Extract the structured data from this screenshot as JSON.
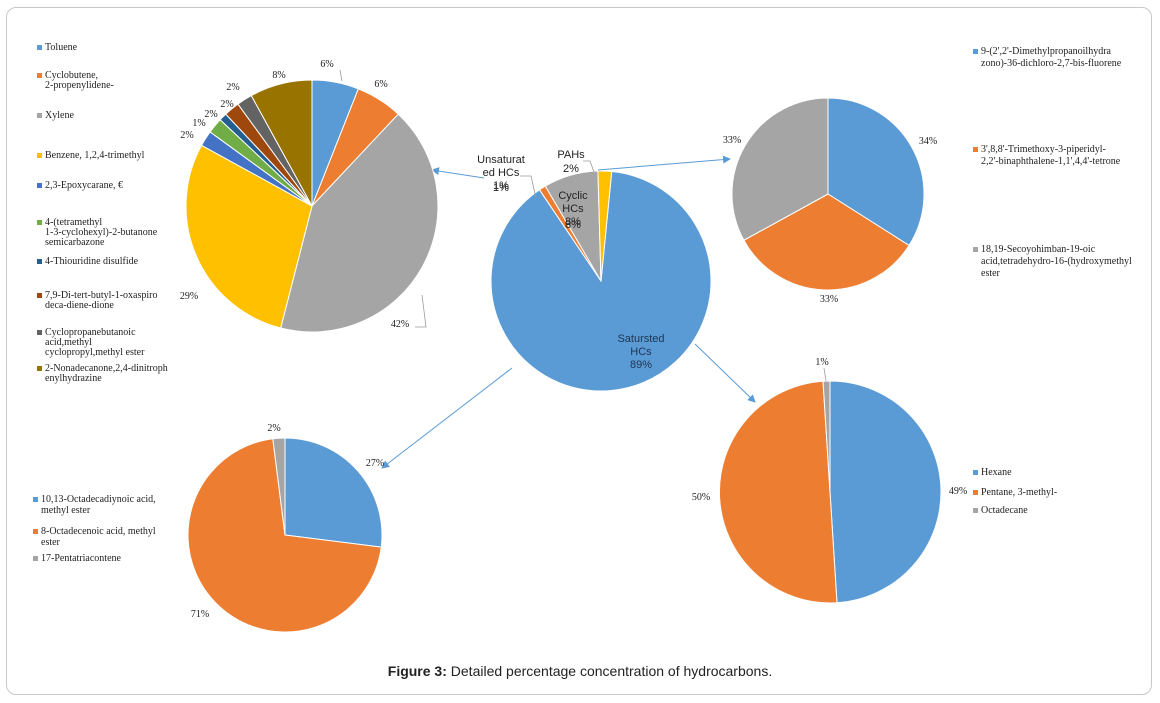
{
  "caption": {
    "label": "Figure 3:",
    "text": "Detailed percentage concentration of hydrocarbons."
  },
  "chart_data": [
    {
      "id": "main",
      "type": "pie",
      "values": [
        89,
        1,
        8,
        2
      ],
      "slice_names": [
        "Saturated HCs",
        "Unsaturated HCs",
        "Cyclic HCs",
        "PAHs"
      ],
      "labels": [
        [
          "Satursted",
          "HCs",
          "89%"
        ],
        [
          "Unsaturat",
          "ed HCs",
          "1%"
        ],
        [
          "Cyclic",
          "HCs",
          "8%"
        ],
        [
          "PAHs",
          "2%"
        ]
      ],
      "colors": [
        "#5b9bd5",
        "#ed7d31",
        "#a5a5a5",
        "#ffc000"
      ]
    },
    {
      "id": "cyclic",
      "type": "pie",
      "values": [
        6,
        6,
        42,
        29,
        2,
        2,
        1,
        2,
        2,
        8
      ],
      "pct_labels": [
        "6%",
        "6%",
        "42%",
        "29%",
        "2%",
        "2%",
        "1%",
        "2%",
        "2%",
        "8%"
      ],
      "legend": [
        "Toluene",
        "Cyclobutene, 2-propenylidene-",
        "Xylene",
        "Benzene, 1,2,4-trimethyl",
        "2,3-Epoxycarane, €",
        "4-(tetramethyl 1-3-cyclohexyl)-2-butanone semicarbazone",
        "4-Thiouridine disulfide",
        "7,9-Di-tert-butyl-1-oxaspiro deca-diene-dione",
        "Cyclopropanebutanoic acid,methyl cyclopropyl,methyl ester",
        "2-Nonadecanone,2,4-dinitrophenylhydrazine"
      ],
      "colors": [
        "#5b9bd5",
        "#ed7d31",
        "#a5a5a5",
        "#ffc000",
        "#4472c4",
        "#70ad47",
        "#255e91",
        "#9e480e",
        "#636363",
        "#997300"
      ],
      "legend_placement": "left"
    },
    {
      "id": "pahs",
      "type": "pie",
      "values": [
        34,
        33,
        33
      ],
      "pct_labels": [
        "34%",
        "33%",
        "33%"
      ],
      "legend": [
        "9-(2',2'-Dimethylpropanoilhydrazono)-36-dichloro-2,7-bis-fluorene",
        "3',8,8'-Trimethoxy-3-piperidyl-2,2'-binaphthalene-1,1',4,4'-tetrone",
        "18,19-Secoyohimban-19-oic acid,tetradehydro-16-(hydroxymethyl ester"
      ],
      "colors": [
        "#5b9bd5",
        "#ed7d31",
        "#a5a5a5"
      ],
      "legend_placement": "right"
    },
    {
      "id": "unsaturated",
      "type": "pie",
      "values": [
        27,
        71,
        2
      ],
      "pct_labels": [
        "27%",
        "71%",
        "2%"
      ],
      "legend": [
        "10,13-Octadecadiynoic acid, methyl ester",
        "8-Octadecenoic acid, methyl ester",
        "17-Pentatriacontene"
      ],
      "colors": [
        "#5b9bd5",
        "#ed7d31",
        "#a5a5a5"
      ],
      "legend_placement": "left"
    },
    {
      "id": "saturated",
      "type": "pie",
      "values": [
        49,
        50,
        1
      ],
      "pct_labels": [
        "49%",
        "50%",
        "1%"
      ],
      "legend": [
        "Hexane",
        "Pentane, 3-methyl-",
        "Octadecane"
      ],
      "colors": [
        "#5b9bd5",
        "#ed7d31",
        "#a5a5a5"
      ],
      "legend_placement": "right"
    }
  ]
}
